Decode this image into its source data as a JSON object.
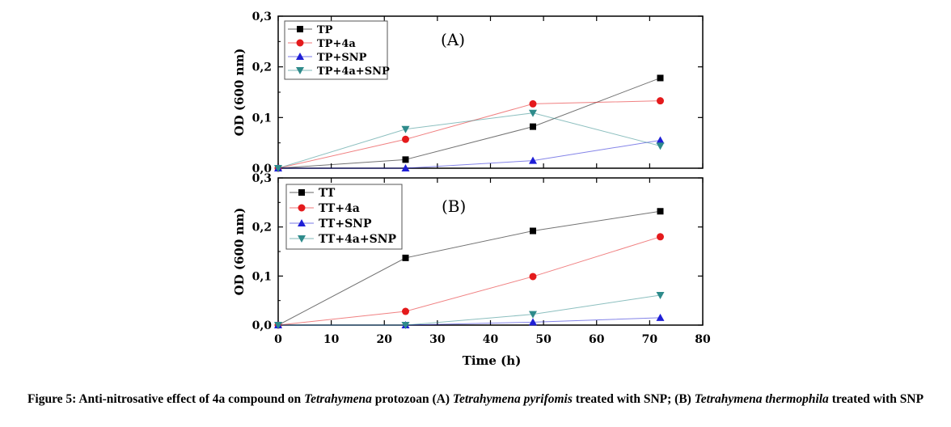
{
  "chart_data": [
    {
      "type": "line",
      "panel_label": "(A)",
      "ylabel": "OD (600 nm)",
      "xlabel": "",
      "ylim": [
        0,
        0.3
      ],
      "yticks": [
        "0,0",
        "0,1",
        "0,2",
        "0,3"
      ],
      "legend_position": "top-left",
      "x": [
        0,
        24,
        48,
        72
      ],
      "series": [
        {
          "name": "TP",
          "color": "#000000",
          "marker": "square",
          "values": [
            0.0,
            0.017,
            0.082,
            0.178
          ]
        },
        {
          "name": "TP+4a",
          "color": "#e41a1c",
          "marker": "circle",
          "values": [
            0.0,
            0.057,
            0.127,
            0.133
          ]
        },
        {
          "name": "TP+SNP",
          "color": "#1f1fd6",
          "marker": "triangle-up",
          "values": [
            0.0,
            0.0,
            0.015,
            0.055
          ]
        },
        {
          "name": "TP+4a+SNP",
          "color": "#2e8b8b",
          "marker": "triangle-down",
          "values": [
            0.0,
            0.077,
            0.109,
            0.044
          ]
        }
      ]
    },
    {
      "type": "line",
      "panel_label": "(B)",
      "ylabel": "OD (600 nm)",
      "xlabel": "Time (h)",
      "xlim": [
        0,
        80
      ],
      "ylim": [
        0,
        0.3
      ],
      "xticks": [
        "0",
        "10",
        "20",
        "30",
        "40",
        "50",
        "60",
        "70",
        "80"
      ],
      "yticks": [
        "0,0",
        "0,1",
        "0,2",
        "0,3"
      ],
      "legend_position": "top-left",
      "x": [
        0,
        24,
        48,
        72
      ],
      "series": [
        {
          "name": "TT",
          "color": "#000000",
          "marker": "square",
          "values": [
            0.0,
            0.137,
            0.192,
            0.232
          ]
        },
        {
          "name": "TT+4a",
          "color": "#e41a1c",
          "marker": "circle",
          "values": [
            0.0,
            0.028,
            0.099,
            0.18
          ]
        },
        {
          "name": "TT+SNP",
          "color": "#1f1fd6",
          "marker": "triangle-up",
          "values": [
            0.0,
            0.0,
            0.006,
            0.015
          ]
        },
        {
          "name": "TT+4a+SNP",
          "color": "#2e8b8b",
          "marker": "triangle-down",
          "values": [
            0.0,
            0.0,
            0.022,
            0.061
          ]
        }
      ]
    }
  ],
  "caption": {
    "prefix": "Figure 5: Anti-nitrosative effect of 4a compound on ",
    "genus": "Tetrahymena",
    "middle": " protozoan (A) ",
    "species_a": "Tetrahymena pyrifomis",
    "middle2": " treated with SNP; (B) ",
    "species_b": "Tetrahymena thermophila",
    "suffix": " treated with SNP"
  }
}
